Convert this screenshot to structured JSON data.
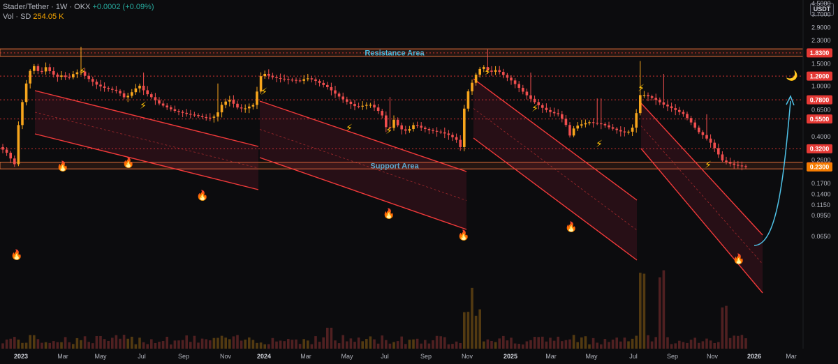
{
  "header": {
    "symbol": "Stader/Tether",
    "interval": "1W",
    "exchange": "OKX",
    "change": "+0.0002 (+0.09%)",
    "vol_label": "Vol · SD",
    "vol_value": "254.05 K"
  },
  "currency_button": "USDT",
  "chart_data": {
    "type": "candlestick",
    "scale": "log",
    "ylim": [
      0.055,
      5.2
    ],
    "y_ticks": [
      "4.5000",
      "3.7000",
      "2.9000",
      "2.3000",
      "1.5000",
      "1.0000",
      "0.6500",
      "0.4000",
      "0.2600",
      "0.1700",
      "0.1400",
      "0.1150",
      "0.0950",
      "0.0650"
    ],
    "x_ticks": [
      {
        "label": "2023",
        "major": true
      },
      {
        "label": "Mar"
      },
      {
        "label": "May"
      },
      {
        "label": "Jul"
      },
      {
        "label": "Sep"
      },
      {
        "label": "Nov"
      },
      {
        "label": "2024",
        "major": true
      },
      {
        "label": "Mar"
      },
      {
        "label": "May"
      },
      {
        "label": "Jul"
      },
      {
        "label": "Sep"
      },
      {
        "label": "Nov"
      },
      {
        "label": "2025",
        "major": true
      },
      {
        "label": "Mar"
      },
      {
        "label": "May"
      },
      {
        "label": "Jul"
      },
      {
        "label": "Sep"
      },
      {
        "label": "Nov"
      },
      {
        "label": "2026",
        "major": true
      },
      {
        "label": "Mar"
      }
    ],
    "price_levels": [
      {
        "label": "1.8300",
        "value": 1.83,
        "color": "#e53935"
      },
      {
        "label": "1.2000",
        "value": 1.2,
        "color": "#e53935"
      },
      {
        "label": "0.7800",
        "value": 0.78,
        "color": "#e53935"
      },
      {
        "label": "0.5500",
        "value": 0.55,
        "color": "#e53935"
      },
      {
        "label": "0.3200",
        "value": 0.32,
        "color": "#e53935"
      },
      {
        "label": "0.2307",
        "value": 0.2307,
        "color": "#e91e63"
      },
      {
        "label": "0.2300",
        "value": 0.23,
        "color": "#f57c00"
      }
    ],
    "zones": [
      {
        "label": "Resistance Area",
        "low": 1.72,
        "high": 1.97
      },
      {
        "label": "Support Area",
        "low": 0.222,
        "high": 0.251
      }
    ],
    "symbols": {
      "lightning": "⚡",
      "flame": "🔥",
      "moon": "🌙"
    }
  }
}
